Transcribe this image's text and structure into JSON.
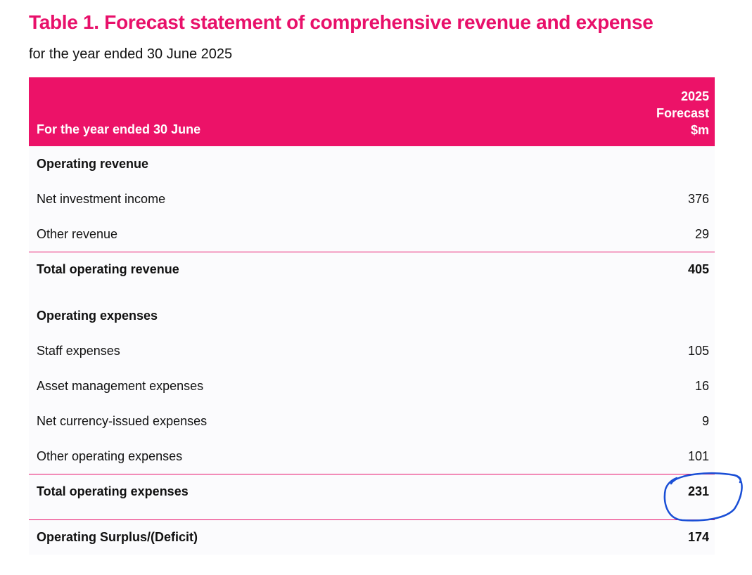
{
  "title": "Table 1. Forecast statement of comprehensive revenue and expense",
  "subtitle": "for the year ended 30 June 2025",
  "table": {
    "header": {
      "label": "For the year ended 30 June",
      "col_line1": "2025",
      "col_line2": "Forecast",
      "col_line3": "$m"
    },
    "operating_revenue": {
      "heading": "Operating revenue",
      "items": [
        {
          "label": "Net investment income",
          "value": "376"
        },
        {
          "label": "Other revenue",
          "value": "29"
        }
      ],
      "total": {
        "label": "Total operating revenue",
        "value": "405"
      }
    },
    "operating_expenses": {
      "heading": "Operating expenses",
      "items": [
        {
          "label": "Staff expenses",
          "value": "105"
        },
        {
          "label": "Asset management expenses",
          "value": "16"
        },
        {
          "label": "Net currency-issued expenses",
          "value": "9"
        },
        {
          "label": "Other operating expenses",
          "value": "101"
        }
      ],
      "total": {
        "label": "Total operating expenses",
        "value": "231"
      }
    },
    "surplus": {
      "label": "Operating Surplus/(Deficit)",
      "value": "174"
    }
  },
  "colors": {
    "accent": "#e8106a",
    "header_bg": "#ec1268",
    "annotation": "#1a4fd6"
  }
}
